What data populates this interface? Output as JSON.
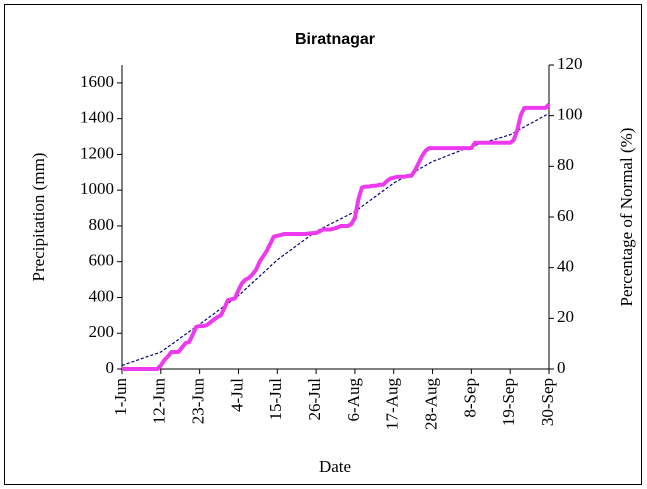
{
  "chart_data": {
    "type": "line",
    "title": "Biratnagar",
    "x_label": "Date",
    "y_label": "Precipitation (mm)",
    "y2_label": "Percentage of Normal (%)",
    "categories": [
      "1-Jun",
      null,
      null,
      null,
      null,
      null,
      null,
      null,
      null,
      null,
      null,
      "12-Jun",
      null,
      null,
      null,
      null,
      null,
      null,
      null,
      null,
      null,
      null,
      "23-Jun",
      null,
      null,
      null,
      null,
      null,
      null,
      null,
      null,
      null,
      null,
      "4-Jul",
      null,
      null,
      null,
      null,
      null,
      null,
      null,
      null,
      null,
      null,
      "15-Jul",
      null,
      null,
      null,
      null,
      null,
      null,
      null,
      null,
      null,
      null,
      "26-Jul",
      null,
      null,
      null,
      null,
      null,
      null,
      null,
      null,
      null,
      null,
      "6-Aug",
      null,
      null,
      null,
      null,
      null,
      null,
      null,
      null,
      null,
      null,
      "17-Aug",
      null,
      null,
      null,
      null,
      null,
      null,
      null,
      null,
      null,
      null,
      "28-Aug",
      null,
      null,
      null,
      null,
      null,
      null,
      null,
      null,
      null,
      null,
      "8-Sep",
      null,
      null,
      null,
      null,
      null,
      null,
      null,
      null,
      null,
      null,
      "19-Sep",
      null,
      null,
      null,
      null,
      null,
      null,
      null,
      null,
      null,
      null,
      "30-Sep"
    ],
    "series": [
      {
        "color": "#ee3aee",
        "width": 4,
        "dashed": false,
        "values": [
          0,
          0,
          0,
          0,
          0,
          0,
          0,
          0,
          0,
          0,
          0,
          20,
          50,
          70,
          95,
          95,
          95,
          120,
          145,
          150,
          190,
          235,
          240,
          240,
          245,
          260,
          275,
          290,
          300,
          340,
          385,
          390,
          395,
          440,
          480,
          500,
          510,
          530,
          555,
          600,
          630,
          660,
          700,
          740,
          745,
          750,
          755,
          755,
          755,
          755,
          755,
          755,
          755,
          758,
          760,
          760,
          770,
          780,
          780,
          780,
          785,
          790,
          800,
          800,
          800,
          810,
          845,
          950,
          1015,
          1020,
          1020,
          1025,
          1025,
          1030,
          1030,
          1050,
          1065,
          1070,
          1075,
          1075,
          1075,
          1080,
          1080,
          1110,
          1150,
          1190,
          1220,
          1235,
          1235,
          1235,
          1235,
          1235,
          1235,
          1235,
          1235,
          1235,
          1235,
          1235,
          1235,
          1235,
          1265,
          1265,
          1265,
          1265,
          1265,
          1265,
          1265,
          1265,
          1265,
          1265,
          1265,
          1280,
          1335,
          1420,
          1460,
          1460,
          1460,
          1460,
          1460,
          1460,
          1460,
          1480
        ]
      },
      {
        "color": "#000080",
        "width": 1.2,
        "dashed": true,
        "values": [
          20,
          27,
          34,
          40,
          47,
          54,
          61,
          68,
          75,
          81,
          88,
          95,
          109,
          123,
          137,
          151,
          165,
          180,
          194,
          208,
          222,
          236,
          250,
          265,
          279,
          294,
          308,
          323,
          337,
          352,
          366,
          381,
          395,
          410,
          428,
          446,
          465,
          483,
          501,
          519,
          537,
          555,
          574,
          592,
          610,
          625,
          639,
          654,
          668,
          683,
          697,
          712,
          726,
          741,
          755,
          770,
          780,
          790,
          800,
          810,
          820,
          830,
          840,
          850,
          860,
          870,
          880,
          895,
          909,
          924,
          938,
          953,
          967,
          982,
          996,
          1011,
          1025,
          1040,
          1051,
          1062,
          1073,
          1084,
          1095,
          1105,
          1116,
          1127,
          1138,
          1149,
          1160,
          1168,
          1175,
          1183,
          1191,
          1199,
          1206,
          1214,
          1222,
          1230,
          1237,
          1245,
          1251,
          1257,
          1263,
          1269,
          1275,
          1280,
          1286,
          1292,
          1298,
          1304,
          1310,
          1321,
          1332,
          1343,
          1354,
          1365,
          1375,
          1386,
          1397,
          1408,
          1419,
          1430
        ]
      }
    ],
    "ylim": [
      0,
      1700
    ],
    "yticks": [
      0,
      200,
      400,
      600,
      800,
      1000,
      1200,
      1400,
      1600
    ],
    "y2lim": [
      0,
      120
    ],
    "y2ticks": [
      0,
      20,
      40,
      60,
      80,
      100,
      120
    ],
    "grid": false
  }
}
